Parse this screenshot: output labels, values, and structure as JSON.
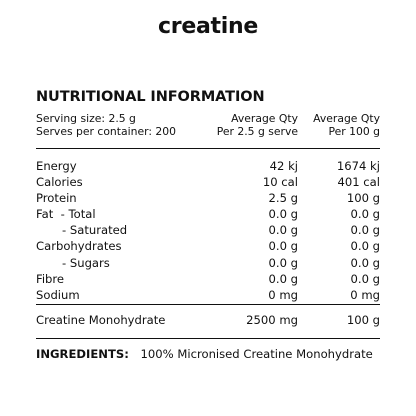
{
  "brand": "creatine",
  "heading": "NUTRITIONAL INFORMATION",
  "serving": {
    "size": "Serving size:  2.5 g",
    "per_container": "Serves per container: 200"
  },
  "columns": {
    "col1_line1": "Average Qty",
    "col1_line2": "Per 2.5 g serve",
    "col2_line1": "Average Qty",
    "col2_line2": "Per 100 g"
  },
  "nutrients": [
    {
      "name": "Energy",
      "per_serve": "42 kj",
      "per_100g": "1674 kj"
    },
    {
      "name": "Calories",
      "per_serve": "10 cal",
      "per_100g": "401 cal"
    },
    {
      "name": "Protein",
      "per_serve": "2.5 g",
      "per_100g": "100 g"
    },
    {
      "name": "Fat  - Total",
      "per_serve": "0.0 g",
      "per_100g": "0.0 g"
    },
    {
      "name": "- Saturated",
      "per_serve": "0.0 g",
      "per_100g": "0.0 g"
    },
    {
      "name": "Carbohydrates",
      "per_serve": "0.0 g",
      "per_100g": "0.0 g"
    },
    {
      "name": "- Sugars",
      "per_serve": "0.0 g",
      "per_100g": "0.0 g"
    },
    {
      "name": "Fibre",
      "per_serve": "0.0 g",
      "per_100g": "0.0 g"
    },
    {
      "name": "Sodium",
      "per_serve": "0 mg",
      "per_100g": "0 mg"
    }
  ],
  "creatine": {
    "name": "Creatine Monohydrate",
    "per_serve": "2500 mg",
    "per_100g": "100 g"
  },
  "ingredients": {
    "label": "INGREDIENTS:",
    "text": "100% Micronised Creatine Monohydrate"
  }
}
